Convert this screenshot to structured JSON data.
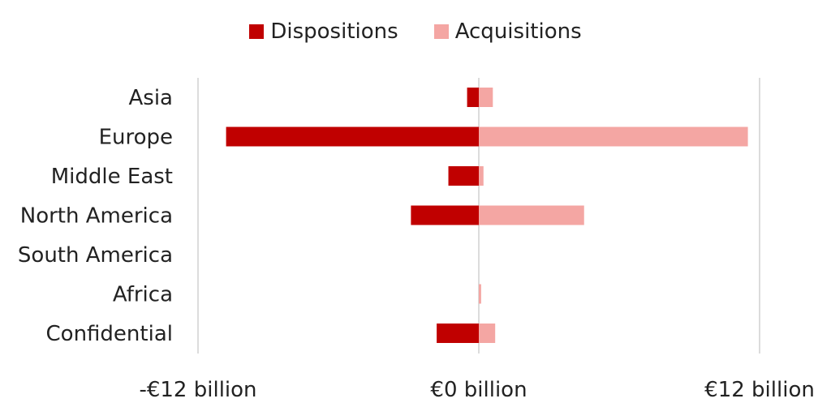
{
  "chart_data": {
    "type": "bar",
    "orientation": "horizontal",
    "stacked": "diverging",
    "categories": [
      "Asia",
      "Europe",
      "Middle East",
      "North America",
      "South America",
      "Africa",
      "Confidential"
    ],
    "series": [
      {
        "name": "Dispositions",
        "color": "#c00000",
        "values": [
          -0.5,
          -10.8,
          -1.3,
          -2.9,
          0,
          0,
          -1.8
        ]
      },
      {
        "name": "Acquisitions",
        "color": "#f4a6a3",
        "values": [
          0.6,
          11.5,
          0.2,
          4.5,
          0,
          0.1,
          0.7
        ]
      }
    ],
    "x_ticks": [
      {
        "value": -12,
        "label": "-€12 billion"
      },
      {
        "value": 0,
        "label": "€0 billion"
      },
      {
        "value": 12,
        "label": "€12 billion"
      }
    ],
    "xlim": [
      -12,
      12
    ],
    "xlabel": "",
    "ylabel": "",
    "title": "",
    "legend": "top",
    "grid": true
  }
}
